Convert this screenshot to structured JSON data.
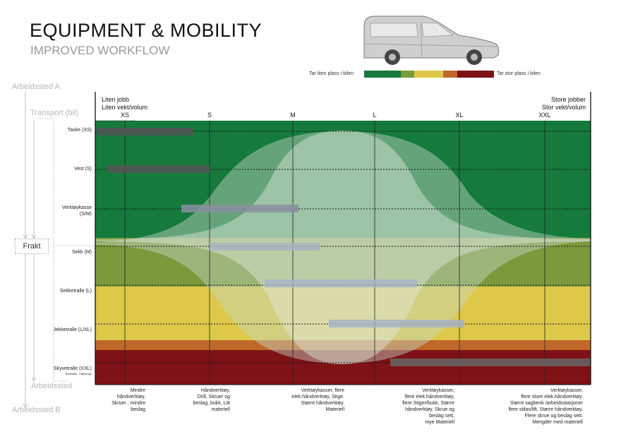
{
  "header": {
    "title": "EQUIPMENT & MOBILITY",
    "subtitle": "IMPROVED WORKFLOW"
  },
  "legend": {
    "left_label": "Tar liten plass i bilen",
    "right_label": "Tar stor plass i bilen",
    "colors": [
      "#157a3c",
      "#7a9a3c",
      "#ddc84a",
      "#c0682a",
      "#7e1216"
    ]
  },
  "side_labels": {
    "arbeidssted_a": "Arbeidssted A",
    "transport": "Transport (bil)",
    "frakt": "Frakt",
    "arbeidssted": "Arbeidssted",
    "arbeidssted_b": "Arbeidssted B"
  },
  "corners": {
    "left": [
      "Liten jobb",
      "Liten vekt/volum"
    ],
    "right": [
      "Store jobber",
      "Stor vekt/volum"
    ]
  },
  "columns": [
    "XS",
    "S",
    "M",
    "L",
    "XL",
    "XXL"
  ],
  "rows": [
    {
      "label": "Taske (XS)"
    },
    {
      "label": "Vest (S)"
    },
    {
      "label": "Verktøykasse",
      "label2": "(S/M)"
    },
    {
      "label": "Sekk (M)"
    },
    {
      "label": "Sekketralle (L)"
    },
    {
      "label": "Jekketralle (L/XL)"
    },
    {
      "label": "Skyvetralle (XXL)",
      "label2": "Sodkralle, Trallevogn"
    }
  ],
  "ranges": [
    {
      "row": "Taske (XS)",
      "from": "XS",
      "to": "S"
    },
    {
      "row": "Vest (S)",
      "from": "XS",
      "to": "S"
    },
    {
      "row": "Verktøykasse (S/M)",
      "from": "S",
      "to": "M"
    },
    {
      "row": "Sekk (M)",
      "from": "S",
      "to": "M"
    },
    {
      "row": "Sekketralle (L)",
      "from": "M",
      "to": "L"
    },
    {
      "row": "Jekketralle (L/XL)",
      "from": "L",
      "to": "XL"
    },
    {
      "row": "Skyvetralle (XXL)",
      "from": "L",
      "to": "XXL"
    }
  ],
  "descriptions": [
    "Mindre\nhåndverktøy,\nSkruer , mindre\nbeslag",
    "Håndverktøy,\nDrill, Skruer og\nbeslag, bukk, Litt\nmateriell",
    "Verktøykasser, flere\nelek.håndverktøy, Stige.\nStørre håndverktøy.\nMateriell",
    "Verktøykasser,\nflere elek.håndverktøy,\nflere Stiger/bukk, Større\nhåndverktøy. Skrue og\nbeslag sett,\nmye Materiell",
    "Verktøykasser,\nflere store elek.håndverktøy.\nStørre sagbenk /arbeidsstasjoner\nflere stilas/lift. Større håndverktøy.\nFlere skrue og beslag sett.\nMengder med materiell"
  ]
}
